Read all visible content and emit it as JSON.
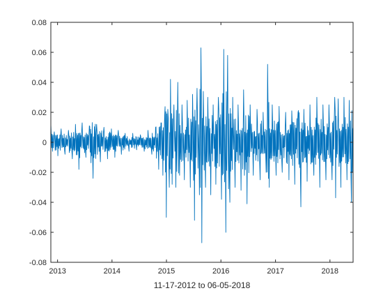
{
  "chart_data": {
    "type": "line",
    "title": "",
    "xlabel": "11-17-2012 to 06-05-2018",
    "ylabel": "",
    "xlim": [
      "2012-11-17",
      "2018-06-05"
    ],
    "ylim": [
      -0.08,
      0.08
    ],
    "x_ticks": [
      {
        "date": "2013-01-01",
        "label": "2013"
      },
      {
        "date": "2014-01-01",
        "label": "2014"
      },
      {
        "date": "2015-01-01",
        "label": "2015"
      },
      {
        "date": "2016-01-01",
        "label": "2016"
      },
      {
        "date": "2017-01-01",
        "label": "2017"
      },
      {
        "date": "2018-01-01",
        "label": "2018"
      }
    ],
    "y_ticks": [
      {
        "value": -0.08,
        "label": "-0.08"
      },
      {
        "value": -0.06,
        "label": "-0.06"
      },
      {
        "value": -0.04,
        "label": "-0.04"
      },
      {
        "value": -0.02,
        "label": "-0.02"
      },
      {
        "value": 0,
        "label": "0"
      },
      {
        "value": 0.02,
        "label": "0.02"
      },
      {
        "value": 0.04,
        "label": "0.04"
      },
      {
        "value": 0.06,
        "label": "0.06"
      },
      {
        "value": 0.08,
        "label": "0.08"
      }
    ],
    "grid": false,
    "box": true,
    "series": [
      {
        "color": "#0072BD",
        "points": [
          [
            "2012-11-17",
            0.012
          ],
          [
            "2012-11-28",
            -0.006
          ],
          [
            "2012-12-10",
            0.007
          ],
          [
            "2013-01-03",
            -0.009
          ],
          [
            "2013-01-25",
            0.009
          ],
          [
            "2013-02-20",
            -0.008
          ],
          [
            "2013-03-15",
            0.008
          ],
          [
            "2013-04-10",
            -0.011
          ],
          [
            "2013-05-01",
            0.012
          ],
          [
            "2013-05-24",
            -0.018
          ],
          [
            "2013-06-15",
            0.013
          ],
          [
            "2013-07-10",
            -0.01
          ],
          [
            "2013-08-02",
            0.011
          ],
          [
            "2013-08-27",
            -0.024
          ],
          [
            "2013-09-20",
            0.012
          ],
          [
            "2013-10-15",
            -0.013
          ],
          [
            "2013-11-08",
            0.01
          ],
          [
            "2013-12-02",
            -0.011
          ],
          [
            "2013-12-28",
            0.009
          ],
          [
            "2014-01-20",
            -0.01
          ],
          [
            "2014-02-12",
            0.008
          ],
          [
            "2014-03-05",
            -0.008
          ],
          [
            "2014-03-30",
            0.006
          ],
          [
            "2014-04-25",
            -0.006
          ],
          [
            "2014-05-20",
            0.006
          ],
          [
            "2014-06-15",
            -0.005
          ],
          [
            "2014-07-10",
            0.005
          ],
          [
            "2014-08-05",
            -0.006
          ],
          [
            "2014-08-30",
            0.008
          ],
          [
            "2014-09-25",
            -0.008
          ],
          [
            "2014-10-20",
            0.01
          ],
          [
            "2014-11-10",
            -0.018
          ],
          [
            "2014-11-25",
            0.013
          ],
          [
            "2014-12-08",
            -0.022
          ],
          [
            "2014-12-20",
            0.018
          ],
          [
            "2014-12-31",
            -0.05
          ],
          [
            "2015-01-10",
            0.022
          ],
          [
            "2015-01-20",
            -0.03
          ],
          [
            "2015-01-28",
            0.042
          ],
          [
            "2015-02-08",
            -0.028
          ],
          [
            "2015-02-20",
            0.025
          ],
          [
            "2015-03-05",
            -0.03
          ],
          [
            "2015-03-18",
            0.04
          ],
          [
            "2015-03-30",
            -0.022
          ],
          [
            "2015-04-15",
            0.025
          ],
          [
            "2015-05-01",
            -0.025
          ],
          [
            "2015-05-20",
            0.028
          ],
          [
            "2015-06-10",
            -0.03
          ],
          [
            "2015-06-25",
            0.032
          ],
          [
            "2015-07-08",
            -0.052
          ],
          [
            "2015-07-25",
            0.036
          ],
          [
            "2015-08-10",
            -0.035
          ],
          [
            "2015-08-20",
            0.063
          ],
          [
            "2015-08-26",
            -0.067
          ],
          [
            "2015-09-05",
            0.034
          ],
          [
            "2015-09-20",
            -0.03
          ],
          [
            "2015-10-05",
            0.03
          ],
          [
            "2015-10-25",
            -0.035
          ],
          [
            "2015-11-10",
            0.025
          ],
          [
            "2015-11-28",
            -0.028
          ],
          [
            "2015-12-15",
            0.03
          ],
          [
            "2016-01-05",
            -0.038
          ],
          [
            "2016-01-20",
            0.062
          ],
          [
            "2016-02-03",
            -0.06
          ],
          [
            "2016-02-15",
            0.058
          ],
          [
            "2016-03-01",
            -0.04
          ],
          [
            "2016-03-20",
            0.03
          ],
          [
            "2016-04-05",
            -0.03
          ],
          [
            "2016-04-25",
            0.025
          ],
          [
            "2016-05-15",
            -0.032
          ],
          [
            "2016-06-01",
            0.035
          ],
          [
            "2016-06-24",
            -0.041
          ],
          [
            "2016-07-15",
            0.025
          ],
          [
            "2016-08-05",
            -0.022
          ],
          [
            "2016-08-30",
            0.022
          ],
          [
            "2016-09-20",
            -0.025
          ],
          [
            "2016-10-10",
            0.02
          ],
          [
            "2016-10-30",
            -0.02
          ],
          [
            "2016-11-09",
            0.052
          ],
          [
            "2016-11-20",
            -0.03
          ],
          [
            "2016-12-10",
            0.025
          ],
          [
            "2017-01-05",
            -0.022
          ],
          [
            "2017-01-25",
            0.024
          ],
          [
            "2017-02-15",
            -0.02
          ],
          [
            "2017-03-10",
            0.02
          ],
          [
            "2017-04-01",
            -0.025
          ],
          [
            "2017-04-20",
            0.021
          ],
          [
            "2017-05-10",
            -0.028
          ],
          [
            "2017-06-01",
            0.02
          ],
          [
            "2017-06-20",
            -0.043
          ],
          [
            "2017-07-10",
            0.022
          ],
          [
            "2017-08-01",
            -0.026
          ],
          [
            "2017-08-20",
            0.025
          ],
          [
            "2017-09-15",
            -0.022
          ],
          [
            "2017-10-05",
            0.03
          ],
          [
            "2017-10-25",
            -0.03
          ],
          [
            "2017-11-15",
            0.025
          ],
          [
            "2017-12-05",
            -0.025
          ],
          [
            "2017-12-25",
            0.025
          ],
          [
            "2018-01-15",
            -0.025
          ],
          [
            "2018-02-02",
            0.03
          ],
          [
            "2018-02-08",
            -0.037
          ],
          [
            "2018-02-25",
            0.029
          ],
          [
            "2018-03-15",
            -0.03
          ],
          [
            "2018-04-05",
            0.03
          ],
          [
            "2018-04-25",
            -0.025
          ],
          [
            "2018-05-10",
            0.028
          ],
          [
            "2018-05-25",
            -0.04
          ],
          [
            "2018-06-05",
            0.01
          ]
        ]
      }
    ]
  }
}
